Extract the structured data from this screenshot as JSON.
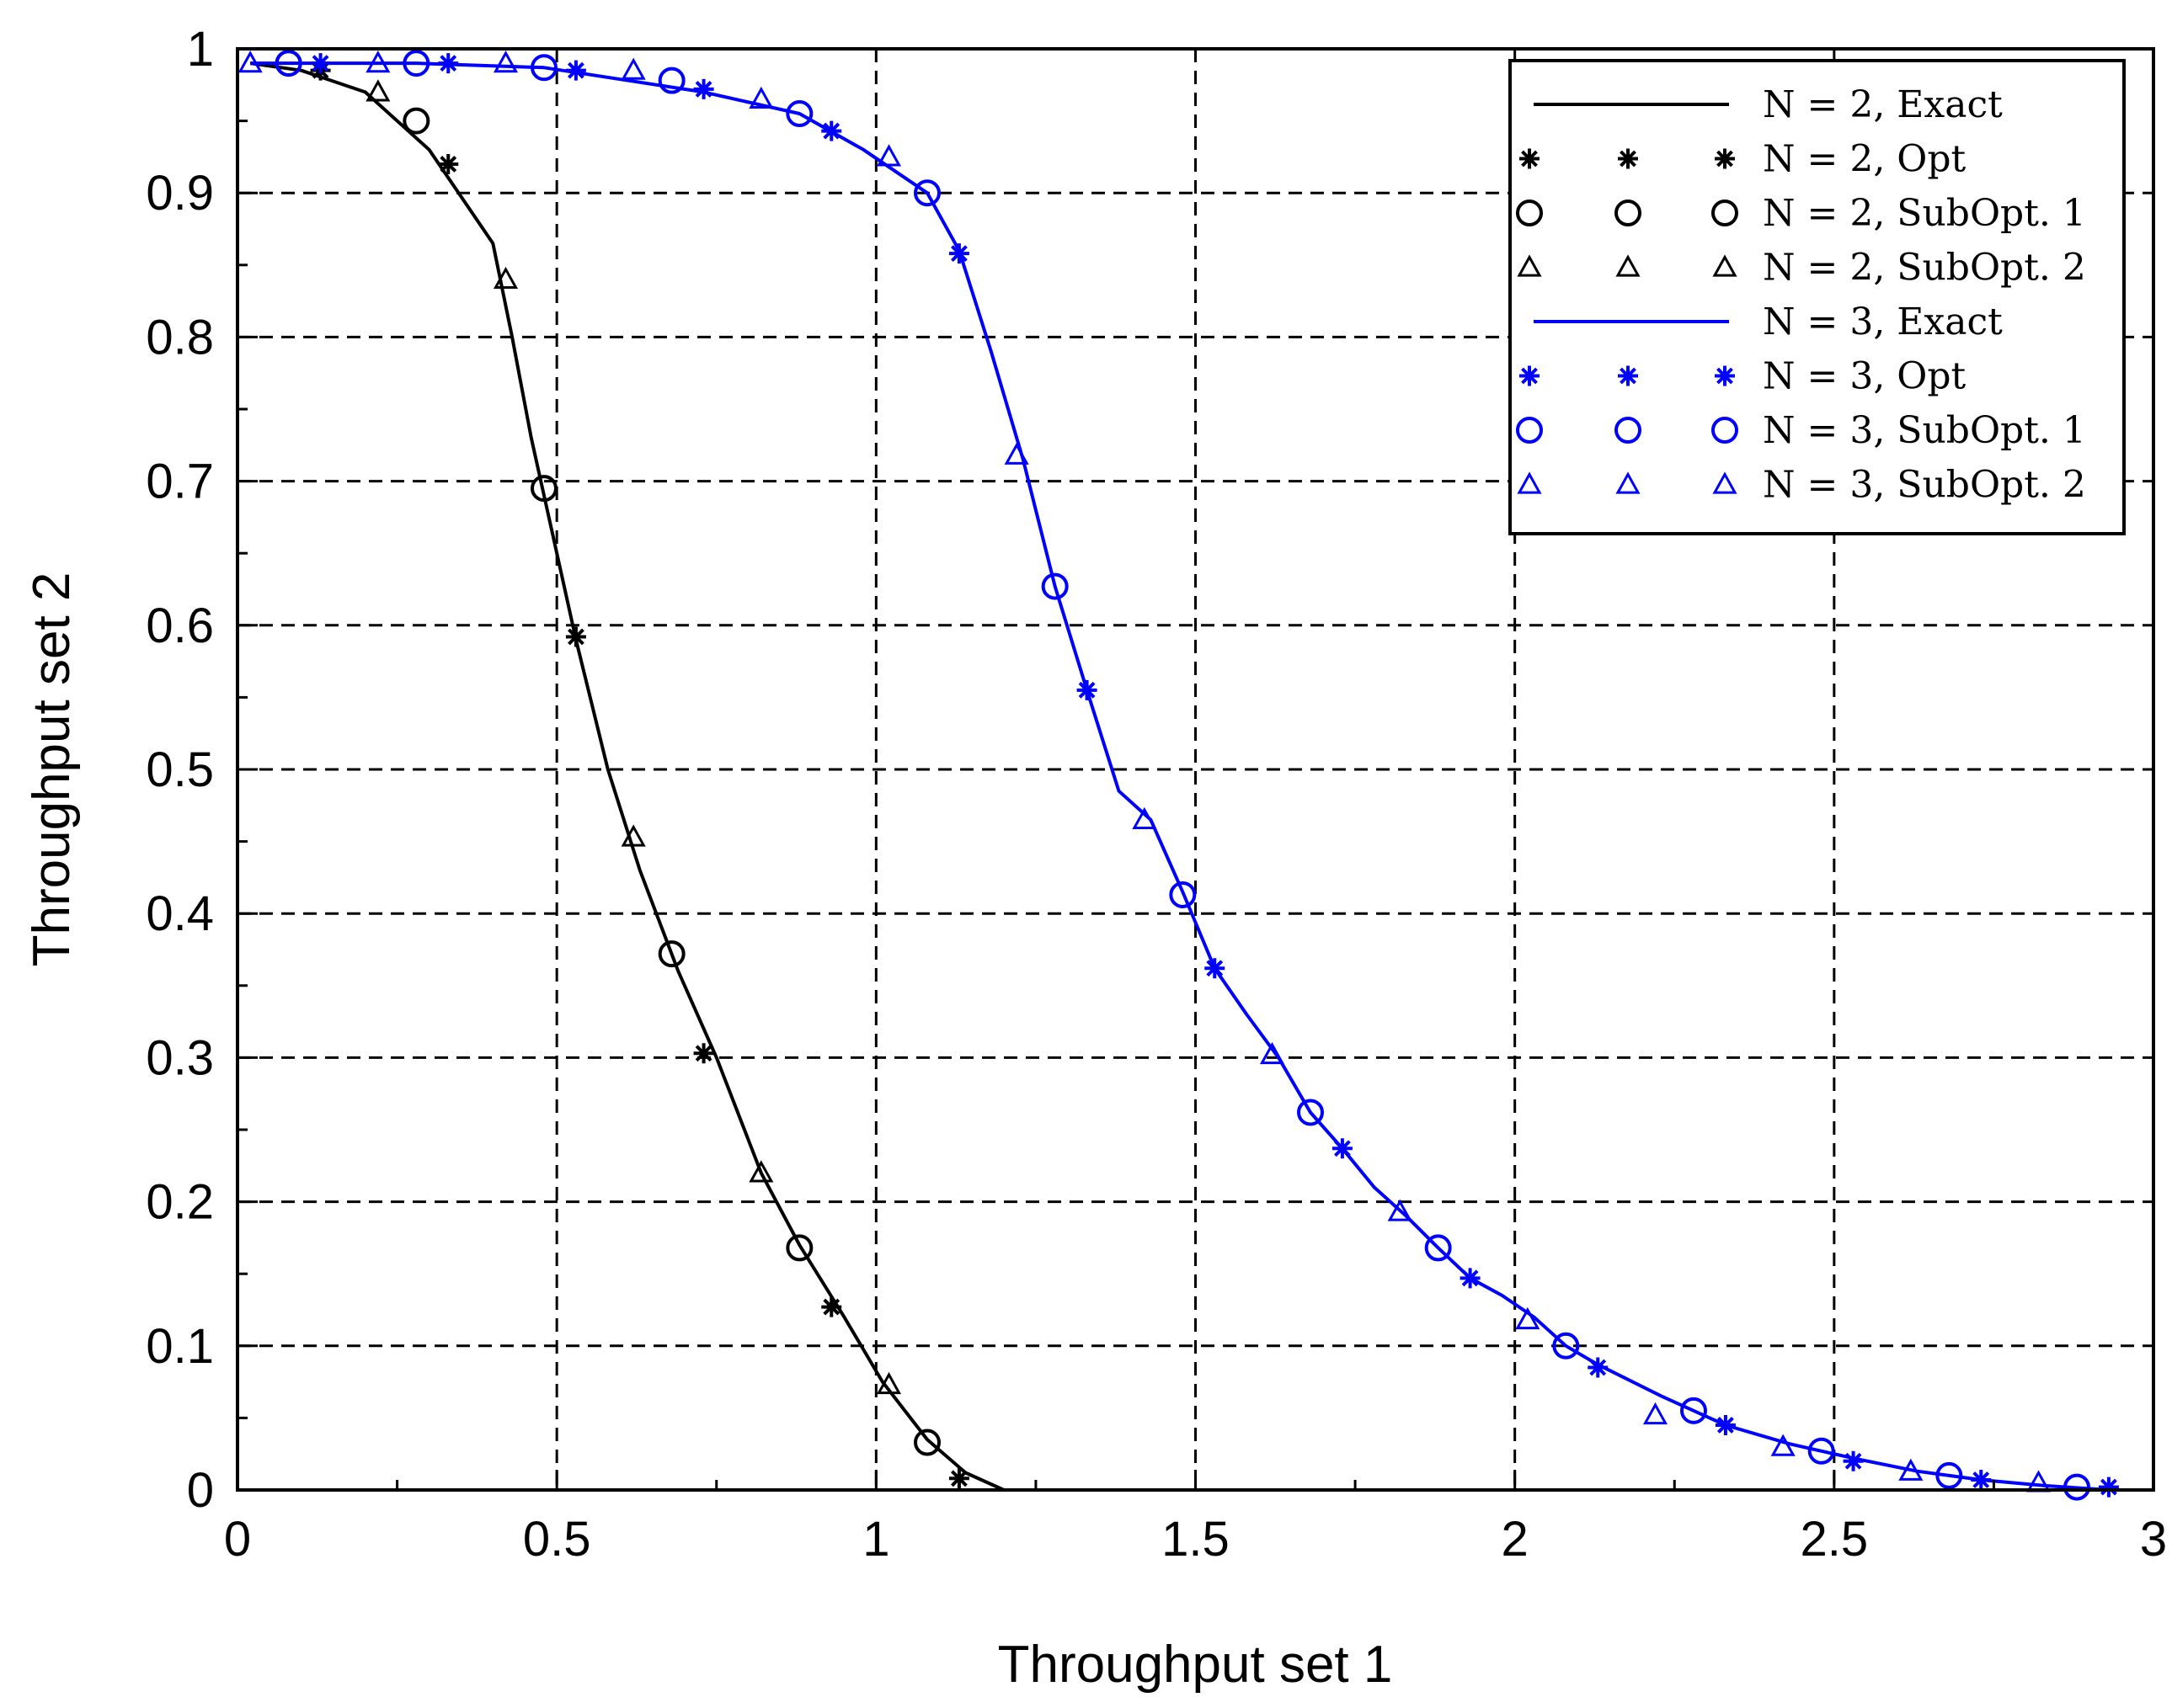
{
  "chart_data": {
    "type": "line",
    "title": "",
    "xlabel": "Throughput set 1",
    "ylabel": "Throughput set 2",
    "xlim": [
      0,
      3
    ],
    "ylim": [
      0,
      1
    ],
    "xticks": [
      {
        "value": 0,
        "label": "0"
      },
      {
        "value": 0.5,
        "label": "0.5"
      },
      {
        "value": 1,
        "label": "1"
      },
      {
        "value": 1.5,
        "label": "1.5"
      },
      {
        "value": 2,
        "label": "2"
      },
      {
        "value": 2.5,
        "label": "2.5"
      },
      {
        "value": 3,
        "label": "3"
      }
    ],
    "yticks": [
      {
        "value": 0,
        "label": "0"
      },
      {
        "value": 0.1,
        "label": "0.1"
      },
      {
        "value": 0.2,
        "label": "0.2"
      },
      {
        "value": 0.3,
        "label": "0.3"
      },
      {
        "value": 0.4,
        "label": "0.4"
      },
      {
        "value": 0.5,
        "label": "0.5"
      },
      {
        "value": 0.6,
        "label": "0.6"
      },
      {
        "value": 0.7,
        "label": "0.7"
      },
      {
        "value": 0.8,
        "label": "0.8"
      },
      {
        "value": 0.9,
        "label": "0.9"
      },
      {
        "value": 1,
        "label": "1"
      }
    ],
    "grid": true,
    "legend_position": "top-right",
    "colors": {
      "n2": "#000000",
      "n3": "#0000ff"
    },
    "series": [
      {
        "name": "N = 2, Exact",
        "kind": "line",
        "color": "#000000",
        "x": [
          0.02,
          0.1,
          0.2,
          0.3,
          0.4,
          0.43,
          0.46,
          0.49,
          0.53,
          0.58,
          0.63,
          0.69,
          0.75,
          0.82,
          0.88,
          0.95,
          1.01,
          1.08,
          1.14,
          1.2
        ],
        "y": [
          0.99,
          0.985,
          0.97,
          0.93,
          0.865,
          0.8,
          0.73,
          0.67,
          0.59,
          0.5,
          0.43,
          0.36,
          0.3,
          0.22,
          0.17,
          0.12,
          0.075,
          0.035,
          0.012,
          0.0
        ]
      },
      {
        "name": "N = 2, Opt",
        "kind": "star",
        "color": "#000000",
        "x": [
          0.13,
          0.33,
          0.53,
          0.73,
          0.93,
          1.13
        ],
        "y": [
          0.985,
          0.92,
          0.592,
          0.303,
          0.127,
          0.008
        ]
      },
      {
        "name": "N = 2, SubOpt. 1",
        "kind": "circle",
        "color": "#000000",
        "x": [
          0.08,
          0.28,
          0.48,
          0.68,
          0.88,
          1.08
        ],
        "y": [
          0.99,
          0.95,
          0.695,
          0.372,
          0.168,
          0.033
        ]
      },
      {
        "name": "N = 2, SubOpt. 2",
        "kind": "triangle",
        "color": "#000000",
        "x": [
          0.22,
          0.42,
          0.62,
          0.82,
          1.02
        ],
        "y": [
          0.97,
          0.84,
          0.453,
          0.22,
          0.073
        ]
      },
      {
        "name": "N = 3, Exact",
        "kind": "line",
        "color": "#0000ff",
        "x": [
          0.02,
          0.28,
          0.48,
          0.73,
          0.88,
          0.98,
          1.08,
          1.13,
          1.18,
          1.23,
          1.28,
          1.33,
          1.38,
          1.43,
          1.48,
          1.53,
          1.58,
          1.63,
          1.68,
          1.73,
          1.78,
          1.83,
          1.88,
          1.93,
          1.98,
          2.03,
          2.08,
          2.13,
          2.23,
          2.33,
          2.43,
          2.53,
          2.63,
          2.73,
          2.83,
          2.93
        ],
        "y": [
          0.99,
          0.99,
          0.987,
          0.97,
          0.955,
          0.93,
          0.9,
          0.86,
          0.79,
          0.715,
          0.627,
          0.555,
          0.485,
          0.465,
          0.415,
          0.362,
          0.33,
          0.3,
          0.262,
          0.237,
          0.21,
          0.19,
          0.168,
          0.147,
          0.135,
          0.12,
          0.1,
          0.087,
          0.065,
          0.045,
          0.032,
          0.022,
          0.013,
          0.007,
          0.003,
          0.0
        ]
      },
      {
        "name": "N = 3, Opt",
        "kind": "star",
        "color": "#0000ff",
        "x": [
          0.13,
          0.33,
          0.53,
          0.73,
          0.93,
          1.13,
          1.33,
          1.53,
          1.73,
          1.93,
          2.13,
          2.33,
          2.53,
          2.73,
          2.93
        ],
        "y": [
          0.99,
          0.99,
          0.985,
          0.972,
          0.943,
          0.858,
          0.555,
          0.362,
          0.237,
          0.147,
          0.085,
          0.045,
          0.02,
          0.007,
          0.002
        ]
      },
      {
        "name": "N = 3, SubOpt. 1",
        "kind": "circle",
        "color": "#0000ff",
        "x": [
          0.08,
          0.28,
          0.48,
          0.68,
          0.88,
          1.08,
          1.28,
          1.48,
          1.68,
          1.88,
          2.08,
          2.28,
          2.48,
          2.68,
          2.88
        ],
        "y": [
          0.99,
          0.99,
          0.987,
          0.978,
          0.955,
          0.9,
          0.627,
          0.413,
          0.262,
          0.168,
          0.1,
          0.055,
          0.027,
          0.01,
          0.002
        ]
      },
      {
        "name": "N = 3, SubOpt. 2",
        "kind": "triangle",
        "color": "#0000ff",
        "x": [
          0.02,
          0.22,
          0.42,
          0.62,
          0.82,
          1.02,
          1.22,
          1.42,
          1.62,
          1.82,
          2.02,
          2.22,
          2.42,
          2.62,
          2.82
        ],
        "y": [
          0.99,
          0.99,
          0.99,
          0.985,
          0.965,
          0.925,
          0.718,
          0.465,
          0.302,
          0.193,
          0.118,
          0.052,
          0.03,
          0.013,
          0.005
        ]
      }
    ],
    "legend": [
      {
        "label": "N = 2, Exact",
        "series_index": 0
      },
      {
        "label": "N = 2, Opt",
        "series_index": 1
      },
      {
        "label": "N = 2, SubOpt. 1",
        "series_index": 2
      },
      {
        "label": "N = 2, SubOpt. 2",
        "series_index": 3
      },
      {
        "label": "N = 3, Exact",
        "series_index": 4
      },
      {
        "label": "N = 3, Opt",
        "series_index": 5
      },
      {
        "label": "N = 3, SubOpt. 1",
        "series_index": 6
      },
      {
        "label": "N = 3, SubOpt. 2",
        "series_index": 7
      }
    ]
  }
}
